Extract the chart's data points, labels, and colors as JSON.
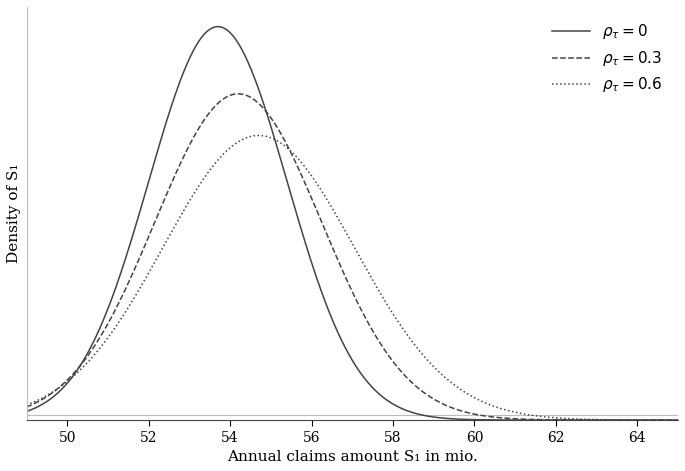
{
  "title": "",
  "xlabel": "Annual claims amount S₁ in mio.",
  "ylabel": "Density of S₁",
  "xlim": [
    49,
    65
  ],
  "ylim_min": 0,
  "xticks": [
    50,
    52,
    54,
    56,
    58,
    60,
    62,
    64
  ],
  "curves": [
    {
      "label": "$\\rho_\\tau = 0$",
      "linestyle": "solid",
      "mu": 53.7,
      "sigma": 1.7,
      "color": "#444444"
    },
    {
      "label": "$\\rho_\\tau = 0.3$",
      "linestyle": "dashed",
      "mu": 54.2,
      "sigma": 2.05,
      "color": "#444444"
    },
    {
      "label": "$\\rho_\\tau = 0.6$",
      "linestyle": "dotted",
      "mu": 54.7,
      "sigma": 2.35,
      "color": "#444444"
    }
  ],
  "legend_loc": "upper right",
  "figure_facecolor": "#ffffff",
  "axes_facecolor": "#ffffff",
  "line_color": "#444444",
  "line_width": 1.1,
  "font_size": 11,
  "tick_font_size": 10,
  "hline_y": 0.003,
  "hline_color": "#bbbbbb"
}
